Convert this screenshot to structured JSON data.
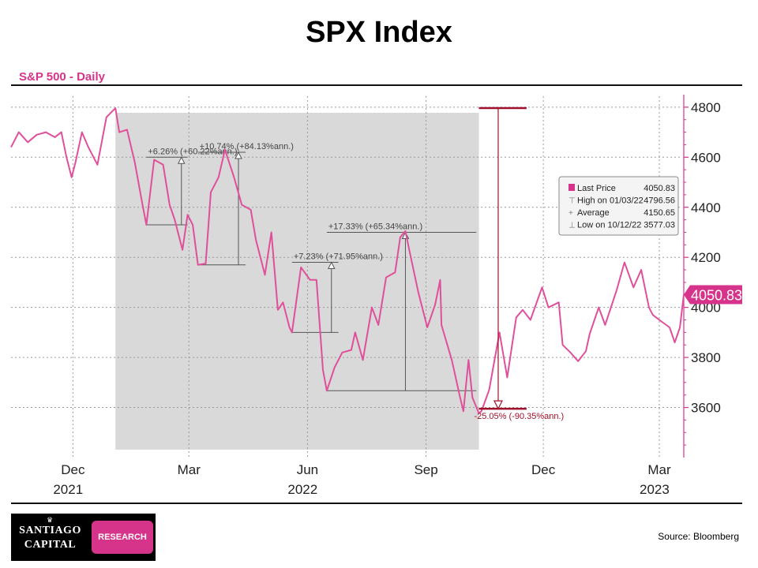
{
  "page": {
    "title": "SPX Index",
    "subtitle": "S&P 500 - Daily",
    "source": "Source: Bloomberg"
  },
  "logo": {
    "line1": "SANTIAGO",
    "line2": "CAPITAL",
    "tag": "RESEARCH"
  },
  "colors": {
    "series": "#e0509a",
    "accent": "#d6338a",
    "annotation_red": "#a0102a",
    "shade": "#d9d9d9",
    "annotation_gray": "#555555"
  },
  "chart_data": {
    "type": "line",
    "title": "S&P 500 - Daily",
    "x_ticks": [
      {
        "month": "Dec",
        "year": "2021",
        "x": "2021-12-01"
      },
      {
        "month": "Mar",
        "year": "",
        "x": "2022-03-01"
      },
      {
        "month": "Jun",
        "year": "2022",
        "x": "2022-06-01"
      },
      {
        "month": "Sep",
        "year": "",
        "x": "2022-09-01"
      },
      {
        "month": "Dec",
        "year": "",
        "x": "2022-12-01"
      },
      {
        "month": "Mar",
        "year": "2023",
        "x": "2023-03-01"
      }
    ],
    "y_ticks": [
      "3600",
      "3800",
      "4000",
      "4200",
      "4400",
      "4600",
      "4800"
    ],
    "ylim": [
      3400,
      4850
    ],
    "xlim": [
      "2021-10-14",
      "2023-03-20"
    ],
    "series": [
      {
        "values": [
          [
            "2021-10-14",
            4640
          ],
          [
            "2021-10-20",
            4700
          ],
          [
            "2021-10-27",
            4660
          ],
          [
            "2021-11-03",
            4690
          ],
          [
            "2021-11-10",
            4700
          ],
          [
            "2021-11-17",
            4680
          ],
          [
            "2021-11-22",
            4700
          ],
          [
            "2021-11-26",
            4600
          ],
          [
            "2021-11-30",
            4520
          ],
          [
            "2021-12-03",
            4580
          ],
          [
            "2021-12-08",
            4700
          ],
          [
            "2021-12-13",
            4640
          ],
          [
            "2021-12-20",
            4570
          ],
          [
            "2021-12-27",
            4760
          ],
          [
            "2022-01-03",
            4796
          ],
          [
            "2022-01-06",
            4700
          ],
          [
            "2022-01-12",
            4710
          ],
          [
            "2022-01-18",
            4580
          ],
          [
            "2022-01-24",
            4410
          ],
          [
            "2022-01-27",
            4330
          ],
          [
            "2022-02-02",
            4590
          ],
          [
            "2022-02-09",
            4570
          ],
          [
            "2022-02-14",
            4410
          ],
          [
            "2022-02-18",
            4350
          ],
          [
            "2022-02-24",
            4230
          ],
          [
            "2022-02-28",
            4370
          ],
          [
            "2022-03-04",
            4330
          ],
          [
            "2022-03-08",
            4170
          ],
          [
            "2022-03-14",
            4175
          ],
          [
            "2022-03-18",
            4460
          ],
          [
            "2022-03-24",
            4520
          ],
          [
            "2022-03-29",
            4630
          ],
          [
            "2022-04-05",
            4520
          ],
          [
            "2022-04-11",
            4410
          ],
          [
            "2022-04-18",
            4390
          ],
          [
            "2022-04-22",
            4270
          ],
          [
            "2022-04-29",
            4130
          ],
          [
            "2022-05-04",
            4300
          ],
          [
            "2022-05-09",
            3990
          ],
          [
            "2022-05-13",
            4020
          ],
          [
            "2022-05-18",
            3920
          ],
          [
            "2022-05-20",
            3900
          ],
          [
            "2022-05-27",
            4160
          ],
          [
            "2022-06-03",
            4110
          ],
          [
            "2022-06-08",
            4110
          ],
          [
            "2022-06-13",
            3750
          ],
          [
            "2022-06-16",
            3667
          ],
          [
            "2022-06-22",
            3760
          ],
          [
            "2022-06-28",
            3820
          ],
          [
            "2022-07-05",
            3830
          ],
          [
            "2022-07-08",
            3900
          ],
          [
            "2022-07-14",
            3790
          ],
          [
            "2022-07-21",
            4000
          ],
          [
            "2022-07-26",
            3930
          ],
          [
            "2022-08-01",
            4120
          ],
          [
            "2022-08-08",
            4140
          ],
          [
            "2022-08-12",
            4280
          ],
          [
            "2022-08-16",
            4305
          ],
          [
            "2022-08-19",
            4230
          ],
          [
            "2022-08-26",
            4060
          ],
          [
            "2022-09-02",
            3920
          ],
          [
            "2022-09-08",
            4010
          ],
          [
            "2022-09-12",
            4110
          ],
          [
            "2022-09-13",
            3930
          ],
          [
            "2022-09-21",
            3790
          ],
          [
            "2022-09-27",
            3650
          ],
          [
            "2022-09-30",
            3585
          ],
          [
            "2022-10-04",
            3790
          ],
          [
            "2022-10-07",
            3640
          ],
          [
            "2022-10-12",
            3577
          ],
          [
            "2022-10-14",
            3585
          ],
          [
            "2022-10-20",
            3670
          ],
          [
            "2022-10-28",
            3900
          ],
          [
            "2022-11-03",
            3720
          ],
          [
            "2022-11-10",
            3960
          ],
          [
            "2022-11-15",
            3990
          ],
          [
            "2022-11-21",
            3950
          ],
          [
            "2022-11-30",
            4080
          ],
          [
            "2022-12-05",
            4000
          ],
          [
            "2022-12-13",
            4020
          ],
          [
            "2022-12-16",
            3850
          ],
          [
            "2022-12-22",
            3820
          ],
          [
            "2022-12-28",
            3785
          ],
          [
            "2023-01-03",
            3825
          ],
          [
            "2023-01-06",
            3895
          ],
          [
            "2023-01-13",
            4000
          ],
          [
            "2023-01-18",
            3930
          ],
          [
            "2023-01-27",
            4070
          ],
          [
            "2023-02-02",
            4180
          ],
          [
            "2023-02-09",
            4080
          ],
          [
            "2023-02-15",
            4150
          ],
          [
            "2023-02-21",
            4000
          ],
          [
            "2023-02-24",
            3970
          ],
          [
            "2023-03-01",
            3950
          ],
          [
            "2023-03-09",
            3920
          ],
          [
            "2023-03-13",
            3860
          ],
          [
            "2023-03-17",
            3920
          ],
          [
            "2023-03-20",
            4050.83
          ]
        ]
      }
    ],
    "shaded_region": {
      "x0": "2022-01-03",
      "x1": "2022-10-12"
    },
    "rally_annotations": [
      {
        "label": "+6.26% (+60.22%ann.)",
        "x0": "2022-01-27",
        "x1": "2022-02-28",
        "y_low": 4330,
        "y_high": 4600
      },
      {
        "label": "+10.74% (+84.13%ann.)",
        "x0": "2022-03-08",
        "x1": "2022-04-14",
        "y_low": 4170,
        "y_high": 4620
      },
      {
        "label": "+7.23% (+71.95%ann.)",
        "x0": "2022-05-20",
        "x1": "2022-06-25",
        "y_low": 3900,
        "y_high": 4180
      },
      {
        "label": "+17.33% (+65.34%ann.)",
        "x0": "2022-06-16",
        "x1": "2022-10-10",
        "y_low": 3667,
        "y_high": 4300
      }
    ],
    "decline_annotation": {
      "label": "-25.05% (-90.35%ann.)",
      "x0": "2022-10-12",
      "x1": "2022-11-18",
      "y_high": 4796.56,
      "y_low": 3595
    },
    "legend": {
      "position": "right",
      "entries": [
        {
          "label": "Last Price",
          "value": "4050.83",
          "symbol": "■"
        },
        {
          "label": "High on 01/03/22",
          "value": "4796.56",
          "symbol": "⊤"
        },
        {
          "label": "Average",
          "value": "4150.65",
          "symbol": "+"
        },
        {
          "label": "Low on 10/12/22",
          "value": "3577.03",
          "symbol": "⊥"
        }
      ]
    },
    "last_price_tag": "4050.83"
  }
}
